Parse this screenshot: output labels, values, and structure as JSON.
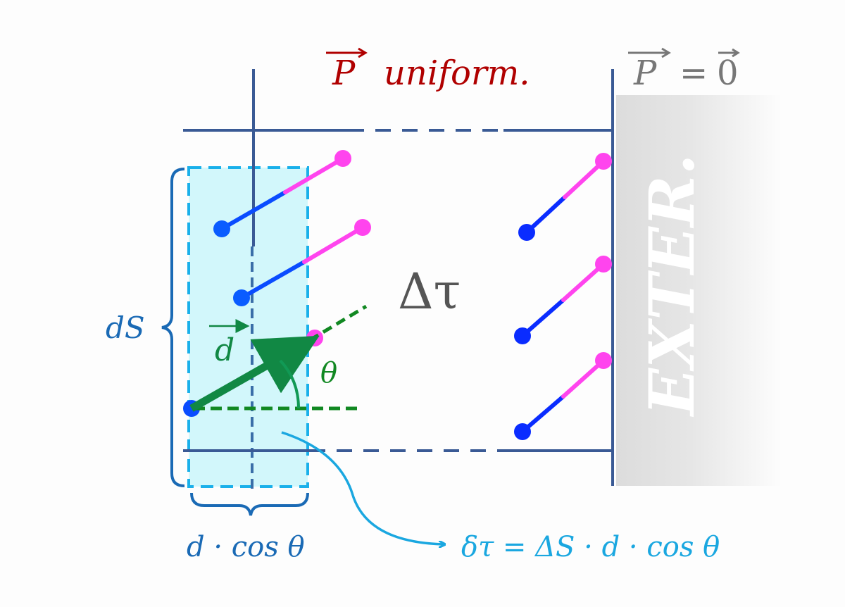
{
  "labels": {
    "p_uniform_vec": "P",
    "p_uniform_text": "uniform.",
    "p_zero_lhs": "P",
    "p_zero_eq": "=",
    "p_zero_rhs": "0",
    "delta_tau": "Δτ",
    "exterior": "EXTER.",
    "ds": "dS",
    "d_vec": "d",
    "theta": "θ",
    "d_cos_theta": "d · cos θ",
    "delta_tau_formula": "δτ = ΔS · d · cos θ"
  },
  "colors": {
    "wall": "#3a5a95",
    "p_uniform": "#b00000",
    "p_zero": "#777777",
    "cyan_region_fill": "#d2f7fb",
    "cyan_region_stroke": "#1ab0ea",
    "brace": "#1a6ab5",
    "dipole_negative": "#0a4cff",
    "dipole_positive": "#ff44ee",
    "d_vector": "#118844",
    "formula": "#1aa7e0",
    "exterior_fill": "#dddddd"
  }
}
